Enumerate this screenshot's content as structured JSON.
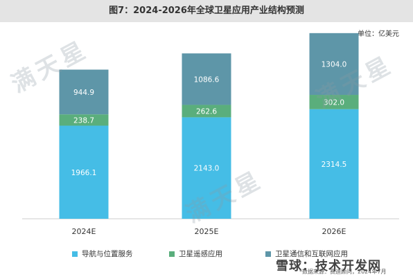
{
  "header": {
    "title": "图7：2024-2026年全球卫星应用产业结构预测",
    "unit": "单位：亿美元"
  },
  "watermark_text": "满天星",
  "footer": {
    "brand": "雪球：技术开发网",
    "source": "*数据来源：赛迪顾问，2024年7月"
  },
  "colors": {
    "navigation": "#45bde6",
    "remote_sensing": "#5aae7c",
    "communication": "#5e96a8",
    "title_band": "#e4e4e4"
  },
  "chart_data": {
    "type": "bar",
    "stacked": true,
    "categories": [
      "2024E",
      "2025E",
      "2026E"
    ],
    "series": [
      {
        "name": "导航与位置服务",
        "values": [
          1966.1,
          2143.0,
          2314.5
        ],
        "labels": [
          "1966.1",
          "2143.0",
          "2314.5"
        ],
        "color": "#45bde6"
      },
      {
        "name": "卫星遥感应用",
        "values": [
          238.7,
          262.6,
          302.0
        ],
        "labels": [
          "238.7",
          "262.6",
          "302.0"
        ],
        "color": "#5aae7c"
      },
      {
        "name": "卫星通信和互联网应用",
        "values": [
          944.9,
          1086.6,
          1304.0
        ],
        "labels": [
          "944.9",
          "1086.6",
          "1304.0"
        ],
        "color": "#5e96a8"
      }
    ],
    "ylim": [
      0,
      4000
    ],
    "grid": false,
    "legend_position": "bottom"
  }
}
